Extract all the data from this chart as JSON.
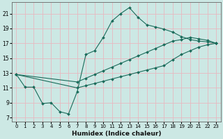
{
  "xlabel": "Humidex (Indice chaleur)",
  "bg_color": "#cce8e4",
  "grid_color": "#e8b8c0",
  "line_color": "#1a6b5a",
  "xlim": [
    -0.5,
    23.5
  ],
  "ylim": [
    6.5,
    22.5
  ],
  "xticks": [
    0,
    1,
    2,
    3,
    4,
    5,
    6,
    7,
    8,
    9,
    10,
    11,
    12,
    13,
    14,
    15,
    16,
    17,
    18,
    19,
    20,
    21,
    22,
    23
  ],
  "yticks": [
    7,
    9,
    11,
    13,
    15,
    17,
    19,
    21
  ],
  "line1_x": [
    0,
    1,
    2,
    3,
    4,
    5,
    6,
    7,
    8,
    9,
    10,
    11,
    12,
    13,
    14,
    15,
    16,
    17,
    18,
    19,
    20,
    21,
    22,
    23
  ],
  "line1_y": [
    12.8,
    11.1,
    11.1,
    8.9,
    9.0,
    7.8,
    7.5,
    10.5,
    15.5,
    16.0,
    17.8,
    20.0,
    21.0,
    21.8,
    20.5,
    19.5,
    19.2,
    18.9,
    18.5,
    17.9,
    17.5,
    17.3,
    17.2,
    17.0
  ],
  "line2_x": [
    0,
    7,
    8,
    9,
    10,
    11,
    12,
    13,
    14,
    15,
    16,
    17,
    18,
    19,
    20,
    21,
    22,
    23
  ],
  "line2_y": [
    12.8,
    11.8,
    12.3,
    12.8,
    13.3,
    13.8,
    14.3,
    14.8,
    15.3,
    15.8,
    16.3,
    16.8,
    17.3,
    17.5,
    17.8,
    17.6,
    17.4,
    17.0
  ],
  "line3_x": [
    0,
    7,
    8,
    9,
    10,
    11,
    12,
    13,
    14,
    15,
    16,
    17,
    18,
    19,
    20,
    21,
    22,
    23
  ],
  "line3_y": [
    12.8,
    11.0,
    11.3,
    11.6,
    11.9,
    12.2,
    12.5,
    12.8,
    13.1,
    13.4,
    13.7,
    14.0,
    14.8,
    15.5,
    16.0,
    16.5,
    16.8,
    17.0
  ],
  "xlabel_fontsize": 6.5,
  "tick_fontsize": 5.0
}
